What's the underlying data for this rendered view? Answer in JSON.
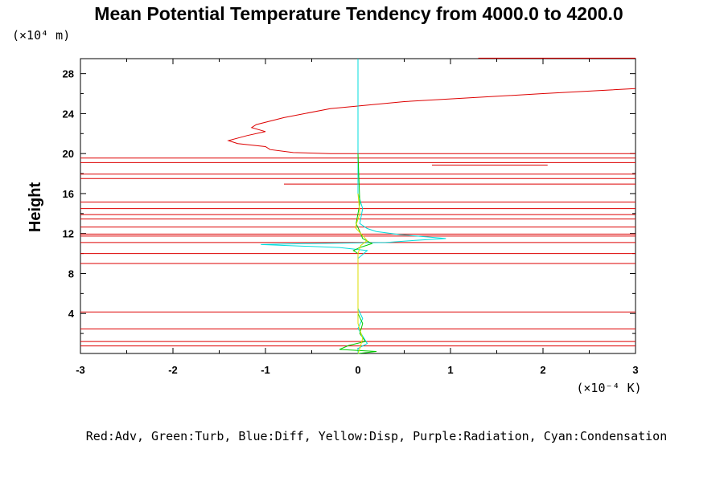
{
  "chart_data": {
    "type": "line",
    "title": "Mean Potential Temperature Tendency from 4000.0 to 4200.0",
    "ylabel": "Height",
    "y_unit_label": "(×10⁴ m)",
    "x_unit_label": "(×10⁻⁴ K)",
    "xlim": [
      -3,
      3
    ],
    "ylim": [
      0,
      29.5
    ],
    "x_ticks": [
      "-3",
      "-2",
      "-1",
      "0",
      "1",
      "2",
      "3"
    ],
    "y_ticks": [
      "4",
      "8",
      "12",
      "16",
      "20",
      "24",
      "28"
    ],
    "legend_text": "Red:Adv, Green:Turb, Blue:Diff, Yellow:Disp, Purple:Radiation, Cyan:Condensation",
    "grid": false,
    "series": [
      {
        "name": "Adv",
        "color": "#dd0000",
        "x": [
          3.0,
          2.0,
          0.5,
          -0.3,
          -0.8,
          -1.1,
          -1.15,
          -1.0,
          -1.2,
          -1.4,
          -1.3,
          -1.0,
          -0.95,
          -0.7,
          -0.3,
          0.5,
          3.0
        ],
        "y": [
          26.5,
          26.0,
          25.2,
          24.5,
          23.6,
          22.9,
          22.6,
          22.2,
          21.8,
          21.3,
          21.0,
          20.7,
          20.4,
          20.1,
          20.0,
          20.0,
          20.0
        ]
      },
      {
        "name": "Condensation",
        "color": "#00dddd",
        "x": [
          0,
          0,
          0,
          0,
          0.05,
          0.02,
          0.1,
          0.2,
          0.45,
          0.95,
          0.6,
          0.3,
          -0.5,
          -1.05,
          -0.2,
          0.1,
          0,
          0,
          0.05,
          0,
          0.1,
          0,
          0
        ],
        "y": [
          29.5,
          24.5,
          20.0,
          16.0,
          14.5,
          13.0,
          12.5,
          12.2,
          11.9,
          11.5,
          11.3,
          11.1,
          11.0,
          10.9,
          10.6,
          10.3,
          9.5,
          4.5,
          3.5,
          2.5,
          1.0,
          0.5,
          0
        ]
      },
      {
        "name": "Turb",
        "color": "#00cc00",
        "x": [
          0,
          0.02,
          -0.02,
          0.03,
          0.05,
          0.15,
          0.02,
          -0.05,
          0,
          0,
          0.05,
          0.02,
          0.08,
          -0.1,
          -0.2,
          0.2,
          0
        ],
        "y": [
          20.0,
          15.0,
          13.0,
          12.0,
          11.5,
          11.0,
          10.6,
          10.3,
          10.0,
          4.0,
          3.0,
          2.0,
          1.2,
          0.8,
          0.4,
          0.2,
          0
        ]
      },
      {
        "name": "Disp",
        "color": "#dddd00",
        "x": [
          0,
          0.02,
          -0.03,
          0.05,
          0.1,
          0.03,
          0,
          0,
          0.05,
          0.02,
          0
        ],
        "y": [
          16.0,
          14.0,
          12.6,
          11.8,
          11.3,
          10.8,
          10.0,
          3.0,
          1.5,
          0.5,
          0
        ]
      }
    ],
    "adv_horizontal_lines": [
      {
        "y": 19.55,
        "x1": -3,
        "x2": 3
      },
      {
        "y": 19.1,
        "x1": -3,
        "x2": 3
      },
      {
        "y": 18.85,
        "x1": 0.8,
        "x2": 2.05
      },
      {
        "y": 17.95,
        "x1": -3,
        "x2": 3
      },
      {
        "y": 17.5,
        "x1": -3,
        "x2": 3
      },
      {
        "y": 16.95,
        "x1": -0.8,
        "x2": 3
      },
      {
        "y": 15.15,
        "x1": -3,
        "x2": 3
      },
      {
        "y": 14.5,
        "x1": -3,
        "x2": 3
      },
      {
        "y": 13.9,
        "x1": -3,
        "x2": 3
      },
      {
        "y": 13.45,
        "x1": -3,
        "x2": 3
      },
      {
        "y": 12.65,
        "x1": -3,
        "x2": 3
      },
      {
        "y": 11.95,
        "x1": -3,
        "x2": 3
      },
      {
        "y": 11.75,
        "x1": -3,
        "x2": 3
      },
      {
        "y": 11.1,
        "x1": -3,
        "x2": 3
      },
      {
        "y": 10.0,
        "x1": -3,
        "x2": 3
      },
      {
        "y": 9.0,
        "x1": -3,
        "x2": 3
      },
      {
        "y": 4.15,
        "x1": -3,
        "x2": 3
      },
      {
        "y": 2.45,
        "x1": -3,
        "x2": 3
      },
      {
        "y": 1.2,
        "x1": -3,
        "x2": 3
      },
      {
        "y": 0.75,
        "x1": -3,
        "x2": 3
      },
      {
        "y": 29.55,
        "x1": 1.3,
        "x2": 3
      }
    ]
  }
}
